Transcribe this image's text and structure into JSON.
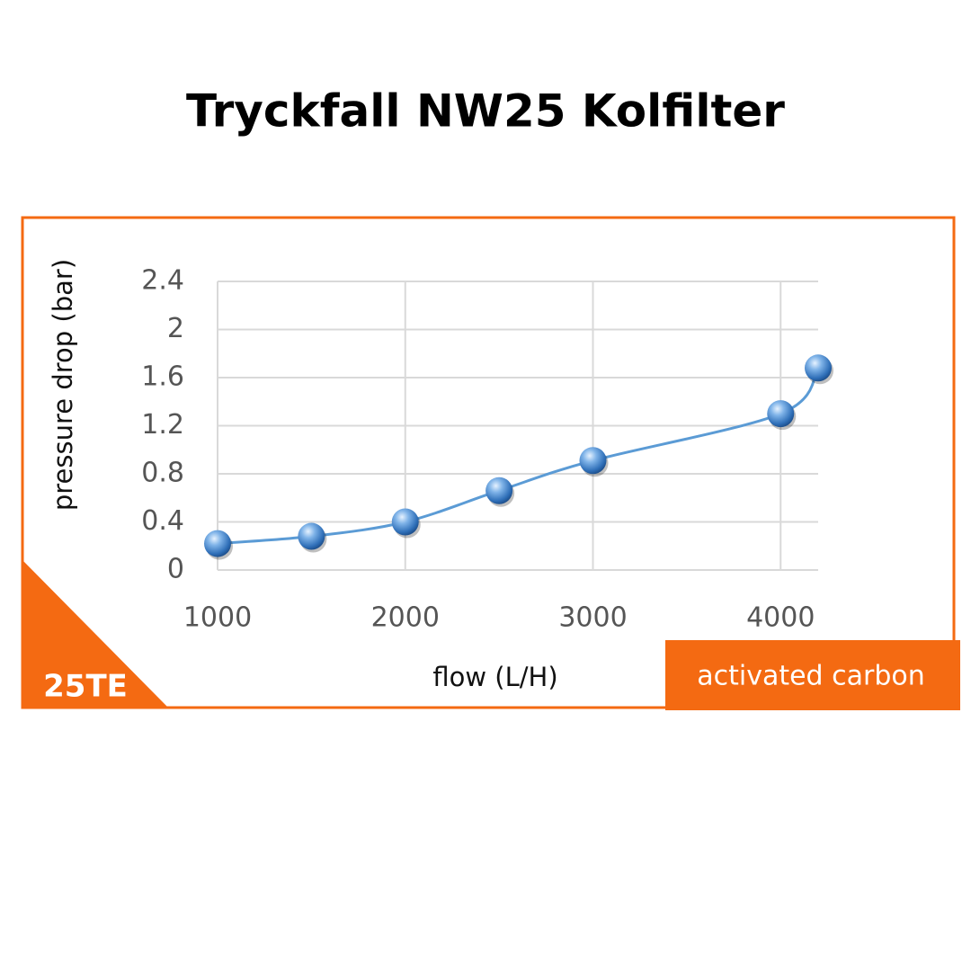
{
  "chart_data": {
    "type": "line",
    "title": "Tryckfall NW25 Kolfilter",
    "x_label": "flow (L/H)",
    "y_label": "pressure drop (bar)",
    "annotations": [
      "25TE",
      "activated carbon"
    ],
    "x": [
      1000,
      1500,
      2000,
      2500,
      3000,
      4000,
      4200
    ],
    "series": [
      {
        "name": "activated carbon",
        "color": "#5b9bd5",
        "values": [
          0.22,
          0.28,
          0.4,
          0.66,
          0.91,
          1.3,
          1.68
        ]
      }
    ],
    "xlim": [
      1000,
      4200
    ],
    "xticks": [
      1000,
      2000,
      3000,
      4000
    ],
    "ylim": [
      0,
      2.4
    ],
    "yticks": [
      0,
      0.4,
      0.8,
      1.2,
      1.6,
      2,
      2.4
    ],
    "grid": true,
    "smooth": true,
    "accent_color": "#f46a12"
  }
}
